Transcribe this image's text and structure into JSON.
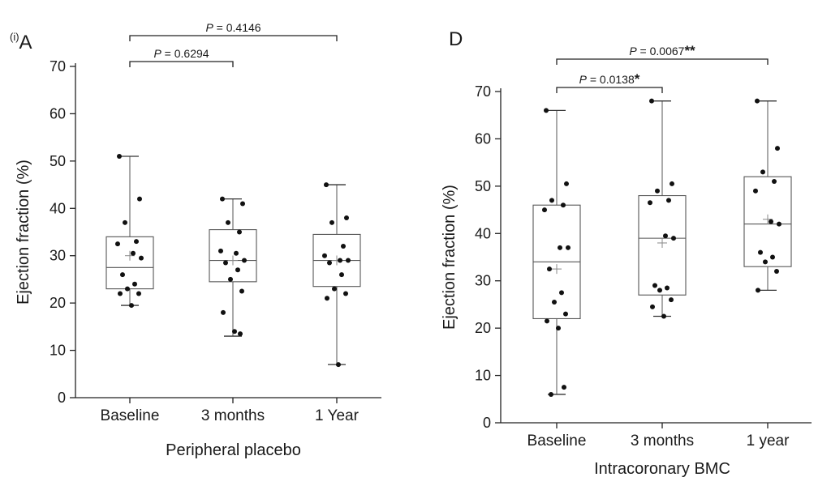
{
  "chart_data": [
    {
      "panel": "A",
      "panel_prefix": "(i)",
      "type": "box",
      "xlabel": "Peripheral placebo",
      "ylabel": "Ejection fraction (%)",
      "ylim": [
        0,
        70
      ],
      "yticks": [
        0,
        10,
        20,
        30,
        40,
        50,
        60,
        70
      ],
      "categories": [
        "Baseline",
        "3 months",
        "1 Year"
      ],
      "boxes": [
        {
          "min": 19.5,
          "q1": 23,
          "median": 27.5,
          "q3": 34,
          "max": 51,
          "mean": 30,
          "points": [
            51,
            42,
            37,
            33,
            32.5,
            30.5,
            29.5,
            26,
            24,
            23,
            22,
            22,
            19.5
          ]
        },
        {
          "min": 13,
          "q1": 24.5,
          "median": 29,
          "q3": 35.5,
          "max": 42,
          "mean": 29,
          "points": [
            42,
            41,
            37,
            35,
            31,
            30.5,
            29,
            28.5,
            27,
            25,
            22.5,
            18,
            14,
            13.5
          ]
        },
        {
          "min": 7,
          "q1": 23.5,
          "median": 29,
          "q3": 34.5,
          "max": 45,
          "mean": 29,
          "points": [
            45,
            38,
            37,
            32,
            30,
            29,
            29,
            28.5,
            26,
            23,
            22,
            21,
            7
          ]
        }
      ],
      "comparisons": [
        {
          "from": 0,
          "to": 1,
          "label": "P = 0.6294",
          "stars": ""
        },
        {
          "from": 0,
          "to": 2,
          "label": "P = 0.4146",
          "stars": ""
        }
      ]
    },
    {
      "panel": "D",
      "panel_prefix": "",
      "type": "box",
      "xlabel": "Intracoronary BMC",
      "ylabel": "Ejection fraction (%)",
      "ylim": [
        0,
        70
      ],
      "yticks": [
        0,
        10,
        20,
        30,
        40,
        50,
        60,
        70
      ],
      "categories": [
        "Baseline",
        "3 months",
        "1 year"
      ],
      "boxes": [
        {
          "min": 6,
          "q1": 22,
          "median": 34,
          "q3": 46,
          "max": 66,
          "mean": 32.5,
          "points": [
            66,
            50.5,
            47,
            46,
            45,
            37,
            37,
            32.5,
            27.5,
            25.5,
            23,
            21.5,
            20,
            7.5,
            6
          ]
        },
        {
          "min": 22.5,
          "q1": 27,
          "median": 39,
          "q3": 48,
          "max": 68,
          "mean": 38,
          "points": [
            68,
            50.5,
            49,
            47,
            46.5,
            39.5,
            39,
            29,
            28.5,
            28,
            26,
            24.5,
            22.5
          ]
        },
        {
          "min": 28,
          "q1": 33,
          "median": 42,
          "q3": 52,
          "max": 68,
          "mean": 43,
          "points": [
            68,
            58,
            53,
            51,
            49,
            42.5,
            42,
            36,
            35,
            34,
            32,
            28
          ]
        }
      ],
      "comparisons": [
        {
          "from": 0,
          "to": 1,
          "label": "P = 0.0138",
          "stars": "*"
        },
        {
          "from": 0,
          "to": 2,
          "label": "P = 0.0067",
          "stars": "**"
        }
      ]
    }
  ]
}
